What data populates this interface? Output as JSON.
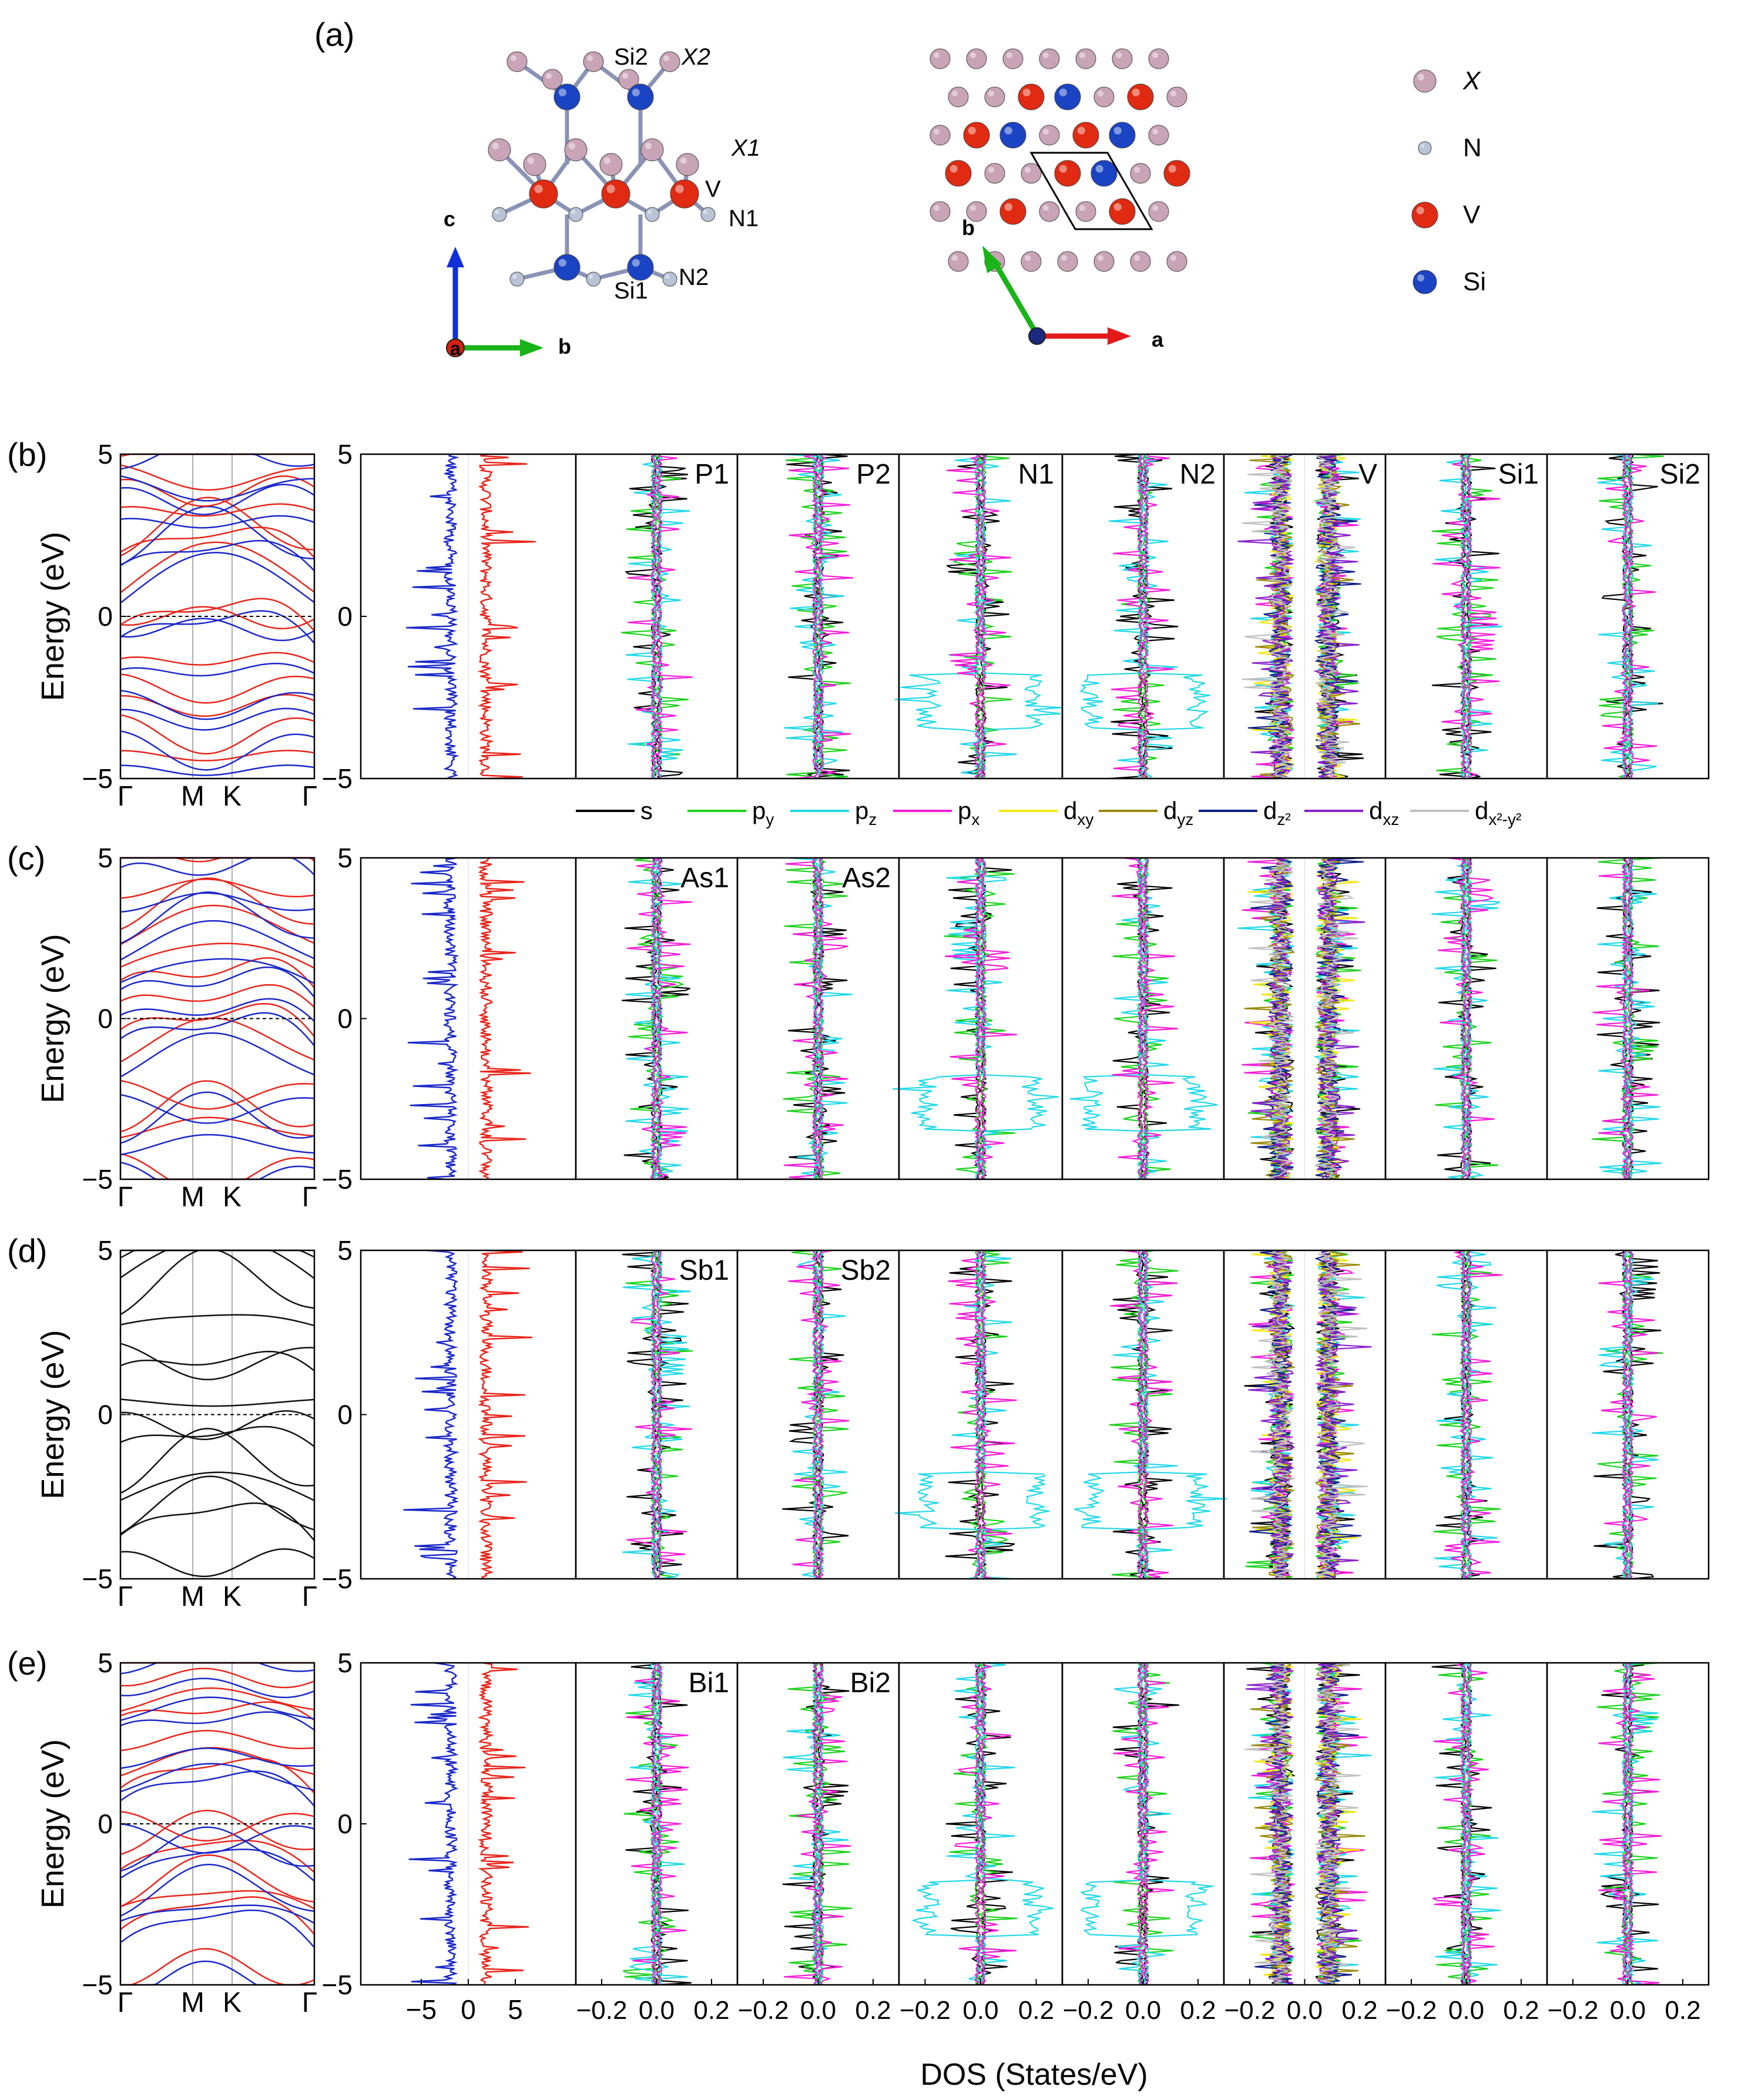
{
  "panel_labels": [
    "(a)",
    "(b)",
    "(c)",
    "(d)",
    "(e)"
  ],
  "crystal": {
    "side_view_labels": [
      "Si2",
      "X2",
      "X1",
      "V",
      "N1",
      "N2",
      "Si1"
    ],
    "side_view_axes": [
      "c",
      "a",
      "b"
    ],
    "top_view_axes": [
      "b",
      "a"
    ],
    "legend": [
      {
        "symbol": "X",
        "color": "#c9a3b6"
      },
      {
        "symbol": "N",
        "color": "#b9c3d6"
      },
      {
        "symbol": "V",
        "color": "#e02a12"
      },
      {
        "symbol": "Si",
        "color": "#1a44c4"
      }
    ]
  },
  "colors": {
    "spin_down": "#1a28c8",
    "spin_up": "#e8251b",
    "band_nonmagnetic": "#111111",
    "s": "#000000",
    "py": "#1fd21f",
    "pz": "#22d8e8",
    "px": "#f21ed8",
    "dxy": "#f2e81a",
    "dyz": "#9a8a10",
    "dz2": "#10208a",
    "dxz": "#8a22cc",
    "dx2y2": "#c0c0c0"
  },
  "axis_text": {
    "ylabel": "Energy (eV)",
    "xlabel": "DOS (States/eV)",
    "y_ticks": [
      "5",
      "0",
      "−5"
    ],
    "kpath": [
      "Γ",
      "M",
      "K",
      "Γ"
    ],
    "tdos_ticks": [
      "−5",
      "0",
      "5"
    ],
    "pdos_ticks": [
      "−0.2",
      "0.0",
      "0.2"
    ]
  },
  "orbital_legend": [
    {
      "key": "s",
      "label": "s"
    },
    {
      "key": "py",
      "label": "p",
      "sub": "y"
    },
    {
      "key": "pz",
      "label": "p",
      "sub": "z"
    },
    {
      "key": "px",
      "label": "p",
      "sub": "x"
    },
    {
      "key": "dxy",
      "label": "d",
      "sub": "xy"
    },
    {
      "key": "dyz",
      "label": "d",
      "sub": "yz"
    },
    {
      "key": "dz2",
      "label": "d",
      "sub": "z²"
    },
    {
      "key": "dxz",
      "label": "d",
      "sub": "xz"
    },
    {
      "key": "dx2y2",
      "label": "d",
      "sub": "x²-y²"
    }
  ],
  "chart_data": [
    {
      "type": "line",
      "panel": "(b)",
      "kind": "band structure",
      "spin_polarized": true,
      "x_ticks": [
        "Γ",
        "M",
        "K",
        "Γ"
      ],
      "ylabel": "Energy (eV)",
      "ylim": [
        -5,
        5
      ],
      "fermi_level": 0
    },
    {
      "type": "line",
      "panel": "(b)",
      "kind": "DOS",
      "ylim": [
        -5,
        5
      ],
      "total_xlim": [
        -8,
        8
      ],
      "pdos_xlim": [
        -0.3,
        0.3
      ],
      "columns": [
        "",
        "P1",
        "P2",
        "N1",
        "N2",
        "V",
        "Si1",
        "Si2"
      ]
    },
    {
      "type": "line",
      "panel": "(c)",
      "kind": "band structure",
      "spin_polarized": true,
      "x_ticks": [
        "Γ",
        "M",
        "K",
        "Γ"
      ],
      "ylabel": "Energy (eV)",
      "ylim": [
        -5,
        5
      ],
      "fermi_level": 0
    },
    {
      "type": "line",
      "panel": "(c)",
      "kind": "DOS",
      "ylim": [
        -5,
        5
      ],
      "total_xlim": [
        -8,
        8
      ],
      "pdos_xlim": [
        -0.3,
        0.3
      ],
      "columns": [
        "",
        "As1",
        "As2",
        "",
        "",
        "",
        "",
        ""
      ]
    },
    {
      "type": "line",
      "panel": "(d)",
      "kind": "band structure",
      "spin_polarized": false,
      "x_ticks": [
        "Γ",
        "M",
        "K",
        "Γ"
      ],
      "ylabel": "Energy (eV)",
      "ylim": [
        -5,
        5
      ],
      "fermi_level": 0
    },
    {
      "type": "line",
      "panel": "(d)",
      "kind": "DOS",
      "ylim": [
        -5,
        5
      ],
      "total_xlim": [
        -8,
        8
      ],
      "pdos_xlim": [
        -0.3,
        0.3
      ],
      "columns": [
        "",
        "Sb1",
        "Sb2",
        "",
        "",
        "",
        "",
        ""
      ]
    },
    {
      "type": "line",
      "panel": "(e)",
      "kind": "band structure",
      "spin_polarized": true,
      "x_ticks": [
        "Γ",
        "M",
        "K",
        "Γ"
      ],
      "ylabel": "Energy (eV)",
      "ylim": [
        -5,
        5
      ],
      "fermi_level": 0
    },
    {
      "type": "line",
      "panel": "(e)",
      "kind": "DOS",
      "ylim": [
        -5,
        5
      ],
      "total_xlim": [
        -8,
        8
      ],
      "pdos_xlim": [
        -0.3,
        0.3
      ],
      "columns": [
        "",
        "Bi1",
        "Bi2",
        "",
        "",
        "",
        "",
        ""
      ]
    }
  ]
}
